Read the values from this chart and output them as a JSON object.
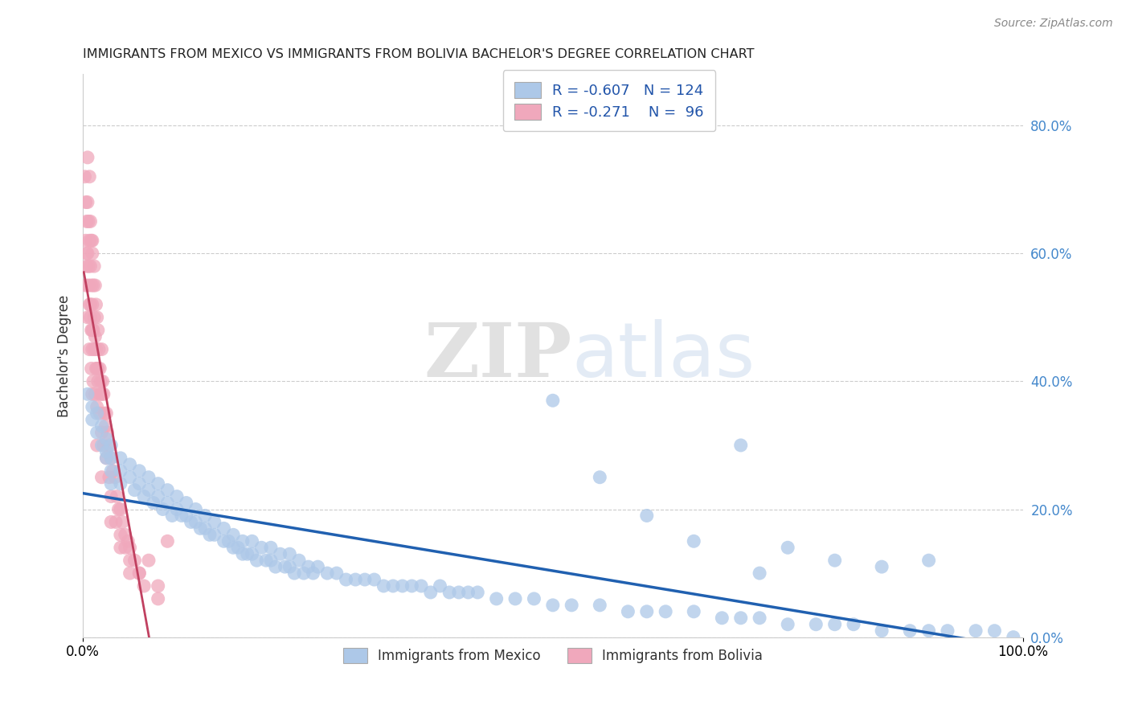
{
  "title": "IMMIGRANTS FROM MEXICO VS IMMIGRANTS FROM BOLIVIA BACHELOR'S DEGREE CORRELATION CHART",
  "source": "Source: ZipAtlas.com",
  "ylabel": "Bachelor's Degree",
  "right_yticks": [
    0.0,
    0.2,
    0.4,
    0.6,
    0.8
  ],
  "right_yticklabels": [
    "0.0%",
    "20.0%",
    "40.0%",
    "60.0%",
    "80.0%"
  ],
  "mexico_R": -0.607,
  "mexico_N": 124,
  "bolivia_R": -0.271,
  "bolivia_N": 96,
  "mexico_color": "#adc8e8",
  "bolivia_color": "#f0a8bc",
  "mexico_line_color": "#2060b0",
  "bolivia_line_color": "#c04060",
  "watermark_color": "#c8d8ec",
  "xlim": [
    0.0,
    1.0
  ],
  "ylim": [
    0.0,
    0.88
  ],
  "mexico_scatter_x": [
    0.005,
    0.01,
    0.01,
    0.015,
    0.015,
    0.02,
    0.02,
    0.025,
    0.025,
    0.025,
    0.03,
    0.03,
    0.03,
    0.03,
    0.04,
    0.04,
    0.04,
    0.05,
    0.05,
    0.055,
    0.06,
    0.06,
    0.065,
    0.07,
    0.07,
    0.075,
    0.08,
    0.08,
    0.085,
    0.09,
    0.09,
    0.095,
    0.1,
    0.1,
    0.105,
    0.11,
    0.11,
    0.115,
    0.12,
    0.12,
    0.125,
    0.13,
    0.13,
    0.135,
    0.14,
    0.14,
    0.15,
    0.15,
    0.155,
    0.16,
    0.16,
    0.165,
    0.17,
    0.17,
    0.175,
    0.18,
    0.18,
    0.185,
    0.19,
    0.195,
    0.2,
    0.2,
    0.205,
    0.21,
    0.215,
    0.22,
    0.22,
    0.225,
    0.23,
    0.235,
    0.24,
    0.245,
    0.25,
    0.26,
    0.27,
    0.28,
    0.29,
    0.3,
    0.31,
    0.32,
    0.33,
    0.34,
    0.35,
    0.36,
    0.37,
    0.38,
    0.39,
    0.4,
    0.41,
    0.42,
    0.44,
    0.46,
    0.48,
    0.5,
    0.52,
    0.55,
    0.58,
    0.6,
    0.62,
    0.65,
    0.68,
    0.7,
    0.72,
    0.75,
    0.78,
    0.8,
    0.82,
    0.85,
    0.88,
    0.9,
    0.92,
    0.95,
    0.97,
    0.99,
    0.5,
    0.55,
    0.6,
    0.65,
    0.7,
    0.72,
    0.75,
    0.8,
    0.85,
    0.9
  ],
  "mexico_scatter_y": [
    0.38,
    0.36,
    0.34,
    0.35,
    0.32,
    0.33,
    0.3,
    0.31,
    0.29,
    0.28,
    0.3,
    0.28,
    0.26,
    0.24,
    0.28,
    0.26,
    0.24,
    0.27,
    0.25,
    0.23,
    0.26,
    0.24,
    0.22,
    0.25,
    0.23,
    0.21,
    0.24,
    0.22,
    0.2,
    0.23,
    0.21,
    0.19,
    0.22,
    0.2,
    0.19,
    0.21,
    0.19,
    0.18,
    0.2,
    0.18,
    0.17,
    0.19,
    0.17,
    0.16,
    0.18,
    0.16,
    0.17,
    0.15,
    0.15,
    0.16,
    0.14,
    0.14,
    0.15,
    0.13,
    0.13,
    0.15,
    0.13,
    0.12,
    0.14,
    0.12,
    0.14,
    0.12,
    0.11,
    0.13,
    0.11,
    0.13,
    0.11,
    0.1,
    0.12,
    0.1,
    0.11,
    0.1,
    0.11,
    0.1,
    0.1,
    0.09,
    0.09,
    0.09,
    0.09,
    0.08,
    0.08,
    0.08,
    0.08,
    0.08,
    0.07,
    0.08,
    0.07,
    0.07,
    0.07,
    0.07,
    0.06,
    0.06,
    0.06,
    0.05,
    0.05,
    0.05,
    0.04,
    0.04,
    0.04,
    0.04,
    0.03,
    0.03,
    0.03,
    0.02,
    0.02,
    0.02,
    0.02,
    0.01,
    0.01,
    0.01,
    0.01,
    0.01,
    0.01,
    0.0,
    0.37,
    0.25,
    0.19,
    0.15,
    0.3,
    0.1,
    0.14,
    0.12,
    0.11,
    0.12
  ],
  "bolivia_scatter_x": [
    0.002,
    0.003,
    0.003,
    0.004,
    0.004,
    0.005,
    0.005,
    0.005,
    0.006,
    0.006,
    0.007,
    0.007,
    0.007,
    0.008,
    0.008,
    0.008,
    0.009,
    0.009,
    0.009,
    0.01,
    0.01,
    0.01,
    0.01,
    0.011,
    0.011,
    0.012,
    0.012,
    0.013,
    0.013,
    0.014,
    0.014,
    0.015,
    0.015,
    0.016,
    0.016,
    0.017,
    0.018,
    0.018,
    0.019,
    0.02,
    0.02,
    0.021,
    0.022,
    0.023,
    0.024,
    0.025,
    0.026,
    0.028,
    0.03,
    0.032,
    0.034,
    0.036,
    0.038,
    0.04,
    0.042,
    0.045,
    0.048,
    0.05,
    0.055,
    0.06,
    0.003,
    0.004,
    0.005,
    0.006,
    0.007,
    0.008,
    0.009,
    0.01,
    0.011,
    0.012,
    0.013,
    0.014,
    0.015,
    0.016,
    0.018,
    0.02,
    0.022,
    0.025,
    0.028,
    0.03,
    0.035,
    0.04,
    0.045,
    0.05,
    0.06,
    0.07,
    0.08,
    0.09,
    0.01,
    0.015,
    0.02,
    0.03,
    0.04,
    0.05,
    0.065,
    0.08
  ],
  "bolivia_scatter_y": [
    0.72,
    0.68,
    0.62,
    0.65,
    0.58,
    0.75,
    0.68,
    0.6,
    0.65,
    0.55,
    0.62,
    0.72,
    0.52,
    0.65,
    0.58,
    0.5,
    0.62,
    0.55,
    0.48,
    0.6,
    0.52,
    0.62,
    0.45,
    0.55,
    0.48,
    0.58,
    0.5,
    0.55,
    0.47,
    0.52,
    0.45,
    0.5,
    0.42,
    0.48,
    0.42,
    0.45,
    0.42,
    0.38,
    0.4,
    0.45,
    0.38,
    0.4,
    0.38,
    0.35,
    0.33,
    0.35,
    0.32,
    0.3,
    0.28,
    0.26,
    0.25,
    0.22,
    0.2,
    0.2,
    0.18,
    0.16,
    0.15,
    0.14,
    0.12,
    0.1,
    0.55,
    0.6,
    0.5,
    0.58,
    0.45,
    0.52,
    0.42,
    0.48,
    0.4,
    0.45,
    0.38,
    0.42,
    0.36,
    0.4,
    0.35,
    0.32,
    0.3,
    0.28,
    0.25,
    0.22,
    0.18,
    0.16,
    0.14,
    0.12,
    0.1,
    0.12,
    0.08,
    0.15,
    0.38,
    0.3,
    0.25,
    0.18,
    0.14,
    0.1,
    0.08,
    0.06
  ]
}
